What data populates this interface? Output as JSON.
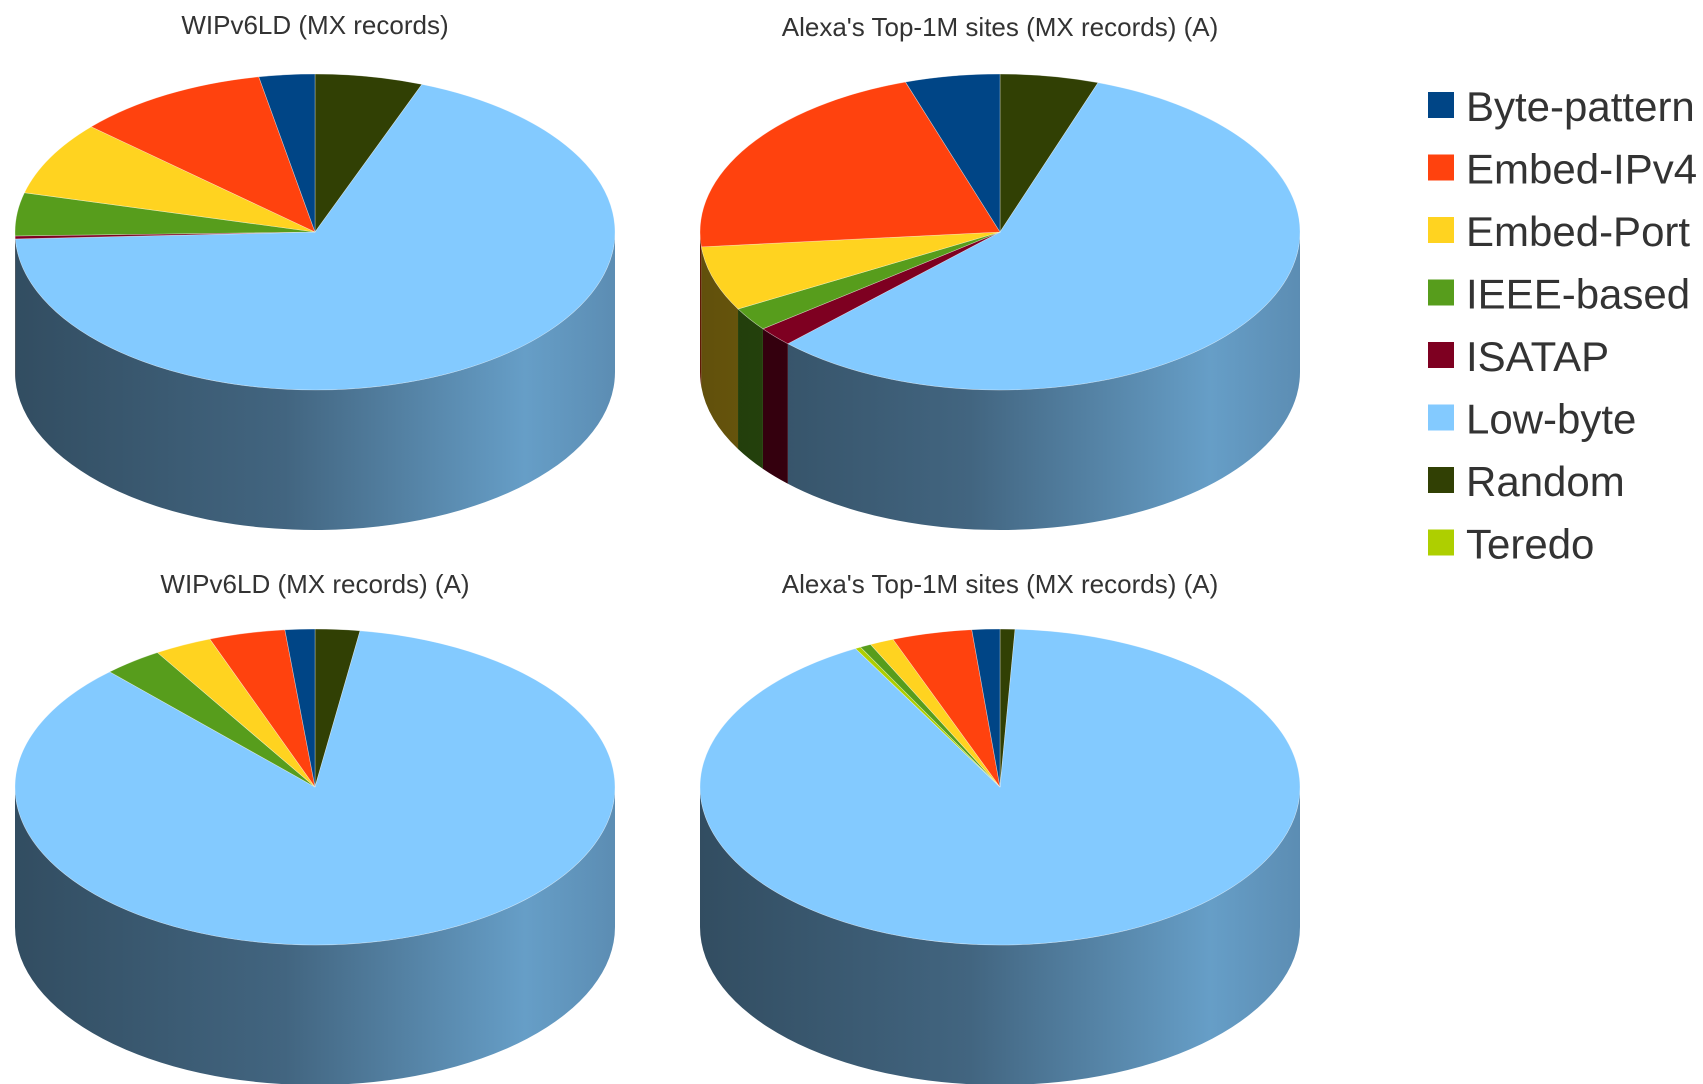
{
  "legend": [
    {
      "label": "Byte-pattern",
      "color": "#004586"
    },
    {
      "label": "Embed-IPv4",
      "color": "#ff420e"
    },
    {
      "label": "Embed-Port",
      "color": "#ffd320"
    },
    {
      "label": "IEEE-based",
      "color": "#579d1c"
    },
    {
      "label": "ISATAP",
      "color": "#7e0021"
    },
    {
      "label": "Low-byte",
      "color": "#83caff"
    },
    {
      "label": "Random",
      "color": "#314004"
    },
    {
      "label": "Teredo",
      "color": "#aecf00"
    }
  ],
  "chart_data": [
    {
      "type": "pie",
      "title": "WIPv6LD (MX records)",
      "categories": [
        "Random",
        "Low-byte",
        "Teredo",
        "ISATAP",
        "IEEE-based",
        "Embed-Port",
        "Embed-IPv4",
        "Byte-pattern"
      ],
      "values": [
        5.8,
        68.5,
        0,
        0.3,
        4.4,
        7.6,
        10.4,
        3.0
      ]
    },
    {
      "type": "pie",
      "title": "Alexa's Top-1M sites (MX records) (A)",
      "categories": [
        "Random",
        "Low-byte",
        "Teredo",
        "ISATAP",
        "IEEE-based",
        "Embed-Port",
        "Embed-IPv4",
        "Byte-pattern"
      ],
      "values": [
        5.3,
        57.2,
        0,
        2.0,
        2.4,
        6.6,
        21.4,
        5.1
      ]
    },
    {
      "type": "pie",
      "title": "WIPv6LD (MX records) (A)",
      "categories": [
        "Random",
        "Low-byte",
        "Teredo",
        "ISATAP",
        "IEEE-based",
        "Embed-Port",
        "Embed-IPv4",
        "Byte-pattern"
      ],
      "values": [
        2.4,
        85.6,
        0,
        0,
        3.2,
        3.1,
        4.1,
        1.6
      ]
    },
    {
      "type": "pie",
      "title": "Alexa's Top-1M sites (MX records) (A)",
      "categories": [
        "Random",
        "Low-byte",
        "Teredo",
        "ISATAP",
        "IEEE-based",
        "Embed-Port",
        "Embed-IPv4",
        "Byte-pattern"
      ],
      "values": [
        0.8,
        91.2,
        0.3,
        0,
        0.6,
        1.3,
        4.3,
        1.5
      ]
    }
  ]
}
